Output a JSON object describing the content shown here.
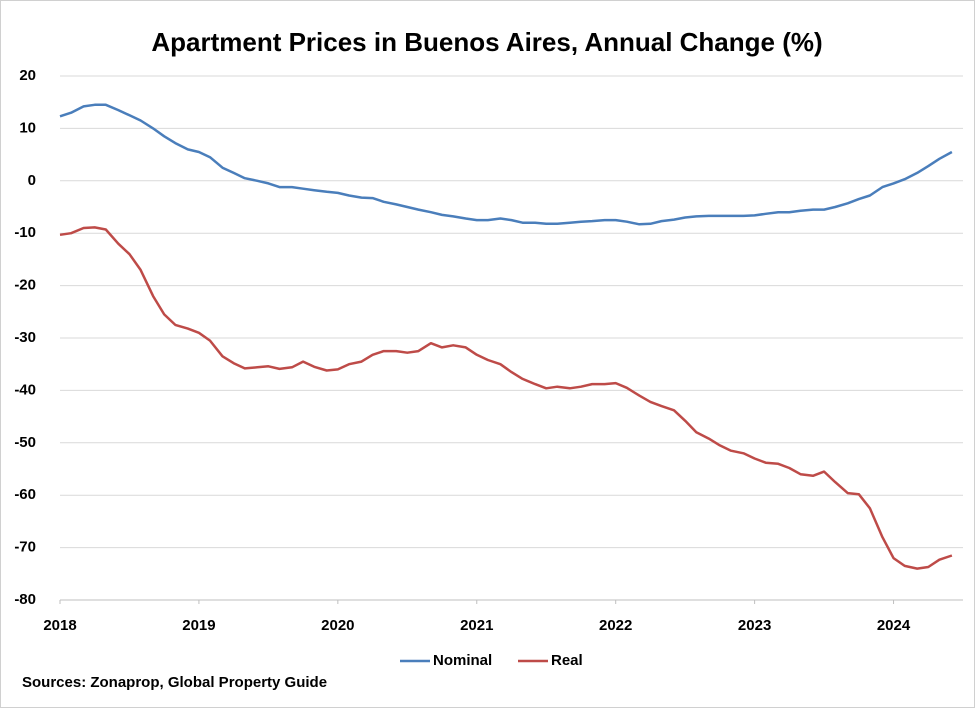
{
  "chart_data": {
    "type": "line",
    "title": "Apartment Prices in Buenos Aires, Annual Change (%)",
    "source": "Sources: Zonaprop, Global Property Guide",
    "x": [
      2018,
      2018.08,
      2018.17,
      2018.25,
      2018.33,
      2018.42,
      2018.5,
      2018.58,
      2018.67,
      2018.75,
      2018.83,
      2018.92,
      2019,
      2019.08,
      2019.17,
      2019.25,
      2019.33,
      2019.42,
      2019.5,
      2019.58,
      2019.67,
      2019.75,
      2019.83,
      2019.92,
      2020,
      2020.08,
      2020.17,
      2020.25,
      2020.33,
      2020.42,
      2020.5,
      2020.58,
      2020.67,
      2020.75,
      2020.83,
      2020.92,
      2021,
      2021.08,
      2021.17,
      2021.25,
      2021.33,
      2021.42,
      2021.5,
      2021.58,
      2021.67,
      2021.75,
      2021.83,
      2021.92,
      2022,
      2022.08,
      2022.17,
      2022.25,
      2022.33,
      2022.42,
      2022.5,
      2022.58,
      2022.67,
      2022.75,
      2022.83,
      2022.92,
      2023,
      2023.08,
      2023.17,
      2023.25,
      2023.33,
      2023.42,
      2023.5,
      2023.58,
      2023.67,
      2023.75,
      2023.83,
      2023.92,
      2024,
      2024.08,
      2024.17,
      2024.25,
      2024.33,
      2024.42
    ],
    "series": [
      {
        "name": "Nominal",
        "color": "#4a7ebb",
        "values": [
          12.3,
          13,
          14.2,
          14.5,
          14.5,
          13.5,
          12.5,
          11.5,
          10,
          8.5,
          7.2,
          6,
          5.5,
          4.5,
          2.5,
          1.5,
          0.5,
          0,
          -0.5,
          -1.2,
          -1.2,
          -1.5,
          -1.8,
          -2.1,
          -2.3,
          -2.8,
          -3.2,
          -3.3,
          -4,
          -4.5,
          -5,
          -5.5,
          -6,
          -6.5,
          -6.8,
          -7.2,
          -7.5,
          -7.5,
          -7.2,
          -7.5,
          -8,
          -8,
          -8.2,
          -8.2,
          -8,
          -7.8,
          -7.7,
          -7.5,
          -7.5,
          -7.8,
          -8.3,
          -8.2,
          -7.7,
          -7.4,
          -7,
          -6.8,
          -6.7,
          -6.7,
          -6.7,
          -6.7,
          -6.6,
          -6.3,
          -6,
          -6,
          -5.7,
          -5.5,
          -5.5,
          -5,
          -4.3,
          -3.5,
          -2.8,
          -1.2,
          -0.5,
          0.3,
          1.5,
          2.8,
          4.2,
          5.5
        ]
      },
      {
        "name": "Real",
        "color": "#be4b48",
        "values": [
          -10.3,
          -10,
          -9,
          -8.9,
          -9.3,
          -12,
          -14,
          -17,
          -22,
          -25.5,
          -27.5,
          -28.2,
          -29,
          -30.5,
          -33.5,
          -34.8,
          -35.8,
          -35.6,
          -35.4,
          -35.9,
          -35.6,
          -34.5,
          -35.5,
          -36.2,
          -36,
          -35,
          -34.5,
          -33.2,
          -32.5,
          -32.5,
          -32.8,
          -32.5,
          -31,
          -31.8,
          -31.4,
          -31.8,
          -33.2,
          -34.2,
          -35,
          -36.5,
          -37.8,
          -38.8,
          -39.6,
          -39.3,
          -39.6,
          -39.3,
          -38.8,
          -38.8,
          -38.6,
          -39.5,
          -41,
          -42.2,
          -43,
          -43.8,
          -45.8,
          -48,
          -49.2,
          -50.5,
          -51.5,
          -52,
          -53,
          -53.8,
          -54,
          -54.8,
          -56,
          -56.3,
          -55.5,
          -57.5,
          -59.6,
          -59.8,
          -62.5,
          -68,
          -72,
          -73.5,
          -74,
          -73.7,
          -72.3,
          -71.5
        ]
      }
    ],
    "xlim": [
      2018,
      2024.5
    ],
    "xticks": [
      2018,
      2019,
      2020,
      2021,
      2022,
      2023,
      2024
    ],
    "ylim": [
      -80,
      20
    ],
    "yticks": [
      20,
      10,
      0,
      -10,
      -20,
      -30,
      -40,
      -50,
      -60,
      -70,
      -80
    ],
    "grid": true,
    "legend": "bottom"
  }
}
